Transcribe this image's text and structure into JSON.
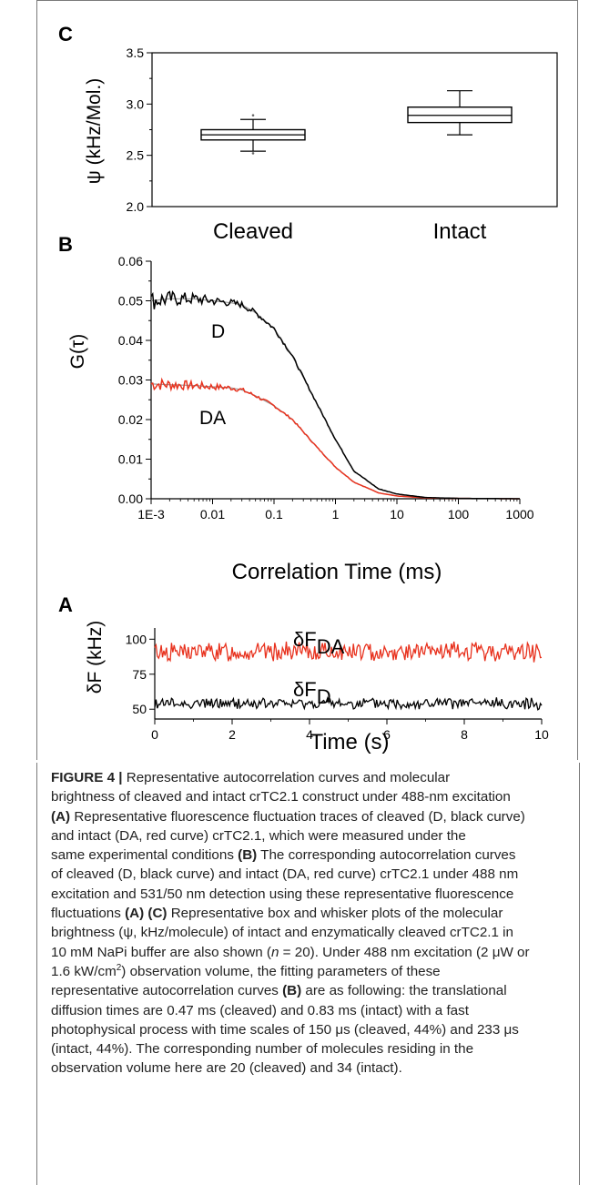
{
  "figure": {
    "page_rule_color": "#7a7a7a",
    "line_black": "#000000",
    "line_red": "#e8321e"
  },
  "chart_data": [
    {
      "panel": "C",
      "type": "box",
      "ylabel": "ψ (kHz/Mol.)",
      "ylim": [
        2.0,
        3.5
      ],
      "yticks": [
        "2.0",
        "2.5",
        "3.0",
        "3.5"
      ],
      "categories": [
        "Cleaved",
        "Intact"
      ],
      "boxes": [
        {
          "category": "Cleaved",
          "whisker_low": 2.54,
          "q1": 2.65,
          "median": 2.7,
          "q3": 2.75,
          "whisker_high": 2.85,
          "outliers": [
            2.52,
            2.89
          ]
        },
        {
          "category": "Intact",
          "whisker_low": 2.7,
          "q1": 2.82,
          "median": 2.89,
          "q3": 2.97,
          "whisker_high": 3.13,
          "outliers": []
        }
      ]
    },
    {
      "panel": "B",
      "type": "line",
      "xscale": "log",
      "xlabel": "Correlation Time (ms)",
      "ylabel": "G(τ)",
      "xlim": [
        0.001,
        1000
      ],
      "ylim": [
        0.0,
        0.06
      ],
      "xticks": [
        "1E-3",
        "0.01",
        "0.1",
        "1",
        "10",
        "100",
        "1000"
      ],
      "yticks": [
        "0.00",
        "0.01",
        "0.02",
        "0.03",
        "0.04",
        "0.05",
        "0.06"
      ],
      "series": [
        {
          "name": "D",
          "color": "#000000",
          "x": [
            0.001,
            0.002,
            0.005,
            0.01,
            0.02,
            0.03,
            0.05,
            0.1,
            0.2,
            0.5,
            1,
            2,
            5,
            10,
            30,
            100,
            1000
          ],
          "y": [
            0.05,
            0.0505,
            0.0505,
            0.05,
            0.0495,
            0.049,
            0.047,
            0.043,
            0.036,
            0.024,
            0.015,
            0.007,
            0.0025,
            0.0012,
            0.0003,
            0.0001,
            0.0
          ]
        },
        {
          "name": "DA",
          "color": "#e8321e",
          "x": [
            0.001,
            0.002,
            0.005,
            0.01,
            0.02,
            0.03,
            0.05,
            0.1,
            0.2,
            0.5,
            1,
            2,
            5,
            10,
            30,
            100,
            1000
          ],
          "y": [
            0.029,
            0.0288,
            0.0286,
            0.0283,
            0.028,
            0.0275,
            0.026,
            0.0235,
            0.02,
            0.013,
            0.008,
            0.0042,
            0.0015,
            0.0007,
            0.0002,
            0.0001,
            0.0
          ]
        }
      ]
    },
    {
      "panel": "A",
      "type": "line",
      "xlabel": "Time (s)",
      "ylabel": "δF (kHz)",
      "xlim": [
        0,
        10
      ],
      "ylim": [
        43,
        108
      ],
      "xticks": [
        "0",
        "2",
        "4",
        "6",
        "8",
        "10"
      ],
      "yticks": [
        "50",
        "75",
        "100"
      ],
      "series": [
        {
          "name": "δFDA",
          "color": "#e8321e",
          "mean": 91,
          "noise": 6
        },
        {
          "name": "δFD",
          "color": "#000000",
          "mean": 54,
          "noise": 3.5
        }
      ]
    }
  ],
  "caption": {
    "lines": [
      [
        {
          "t": "FIGURE 4 | ",
          "b": true
        },
        {
          "t": "Representative autocorrelation curves and molecular"
        }
      ],
      [
        {
          "t": "brightness of cleaved and intact crTC2.1 construct under 488-nm excitation"
        }
      ],
      [
        {
          "t": "(A)",
          "b": true
        },
        {
          "t": " Representative fluorescence fluctuation traces of cleaved (D, black curve)"
        }
      ],
      [
        {
          "t": "and intact (DA, red curve) crTC2.1, which were measured under the"
        }
      ],
      [
        {
          "t": "same experimental conditions "
        },
        {
          "t": "(B)",
          "b": true
        },
        {
          "t": " The corresponding autocorrelation curves"
        }
      ],
      [
        {
          "t": "of cleaved (D, black curve) and intact (DA, red curve) crTC2.1 under 488 nm"
        }
      ],
      [
        {
          "t": "excitation and 531/50 nm detection using these representative fluorescence"
        }
      ],
      [
        {
          "t": "fluctuations "
        },
        {
          "t": "(A)",
          "b": true
        },
        {
          "t": " "
        },
        {
          "t": "(C)",
          "b": true
        },
        {
          "t": " Representative box and whisker plots of the molecular"
        }
      ],
      [
        {
          "t": "brightness (ψ, kHz/molecule) of intact and enzymatically cleaved crTC2.1 in"
        }
      ],
      [
        {
          "t": "10 mM NaPi buffer are also shown ("
        },
        {
          "t": "n",
          "i": true
        },
        {
          "t": " = 20). Under 488 nm excitation (2 μW or"
        }
      ],
      [
        {
          "t": "1.6 kW/cm"
        },
        {
          "t": "2",
          "sup": true
        },
        {
          "t": ") observation volume, the fitting parameters of these"
        }
      ],
      [
        {
          "t": "representative autocorrelation curves "
        },
        {
          "t": "(B)",
          "b": true
        },
        {
          "t": " are as following: the translational"
        }
      ],
      [
        {
          "t": "diffusion times are 0.47 ms (cleaved) and 0.83 ms (intact) with a fast"
        }
      ],
      [
        {
          "t": "photophysical process with time scales of 150 μs (cleaved, 44%) and 233 μs"
        }
      ],
      [
        {
          "t": "(intact, 44%). The corresponding number of molecules residing in the"
        }
      ],
      [
        {
          "t": "observation volume here are 20 (cleaved) and 34 (intact)."
        }
      ]
    ]
  }
}
